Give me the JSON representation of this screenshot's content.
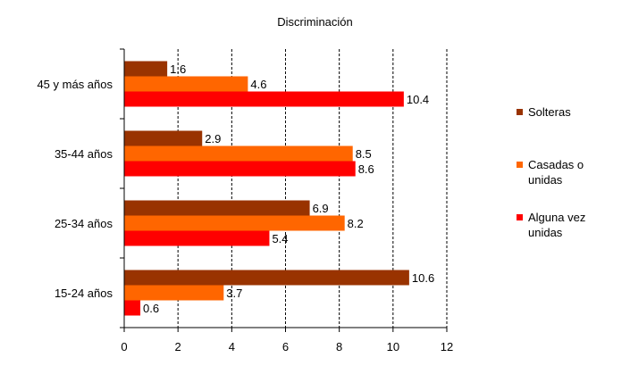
{
  "chart_data": {
    "type": "bar",
    "orientation": "horizontal",
    "title": "Discriminación",
    "xlabel": "",
    "ylabel": "",
    "xlim": [
      0,
      12
    ],
    "xticks": [
      0,
      2,
      4,
      6,
      8,
      10,
      12
    ],
    "grid": "vertical dashed",
    "legend_position": "right",
    "categories": [
      "45 y más años",
      "35-44 años",
      "25-34 años",
      "15-24 años"
    ],
    "series": [
      {
        "name": "Solteras",
        "color": "#993300",
        "values": [
          1.6,
          2.9,
          6.9,
          10.6
        ]
      },
      {
        "name": "Casadas o unidas",
        "color": "#FF6600",
        "values": [
          4.6,
          8.5,
          8.2,
          3.7
        ]
      },
      {
        "name": "Alguna vez unidas",
        "color": "#FF0000",
        "values": [
          10.4,
          8.6,
          5.4,
          0.6
        ]
      }
    ]
  }
}
